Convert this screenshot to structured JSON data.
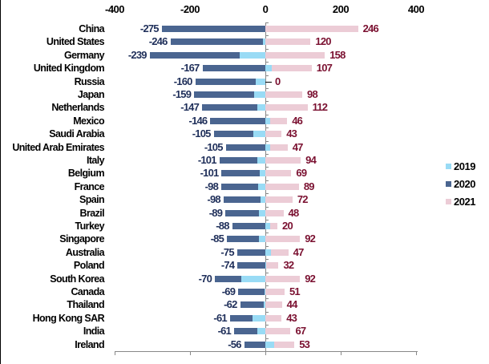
{
  "chart_data": {
    "type": "bar",
    "orientation": "horizontal",
    "stacked": true,
    "title": "",
    "xlabel": "",
    "ylabel": "",
    "xlim": [
      -400,
      400
    ],
    "x_ticks": [
      "-400",
      "-200",
      "0",
      "200",
      "400"
    ],
    "legend_position": "right",
    "grid": false,
    "categories": [
      "China",
      "United States",
      "Germany",
      "United Kingdom",
      "Russia",
      "Japan",
      "Netherlands",
      "Mexico",
      "Saudi Arabia",
      "United Arab Emirates",
      "Italy",
      "Belgium",
      "France",
      "Spain",
      "Brazil",
      "Turkey",
      "Singapore",
      "Australia",
      "Poland",
      "South Korea",
      "Canada",
      "Thailand",
      "Hong Kong SAR",
      "India",
      "Ireland"
    ],
    "series": [
      {
        "name": "2019",
        "color": "#99dbf5",
        "values": [
          0,
          -6,
          -68,
          16,
          -26,
          -30,
          -21,
          12,
          -32,
          12,
          -21,
          -15,
          -19,
          -13,
          -17,
          12,
          -17,
          14,
          3,
          -64,
          -3,
          -5,
          -33,
          -22,
          24
        ]
      },
      {
        "name": "2020",
        "color": "#4a6590",
        "values": [
          -275,
          -246,
          -239,
          -167,
          -160,
          -159,
          -147,
          -146,
          -105,
          -105,
          -101,
          -101,
          -98,
          -98,
          -89,
          -88,
          -85,
          -75,
          -74,
          -70,
          -69,
          -62,
          -61,
          -61,
          -56
        ]
      },
      {
        "name": "2021",
        "color": "#ecccd6",
        "values": [
          246,
          120,
          158,
          107,
          0,
          98,
          112,
          46,
          43,
          47,
          94,
          69,
          89,
          72,
          48,
          20,
          92,
          47,
          32,
          92,
          51,
          44,
          43,
          67,
          53
        ]
      }
    ],
    "data_labels": {
      "2020": [
        "-275",
        "-246",
        "-239",
        "-167",
        "-160",
        "-159",
        "-147",
        "-146",
        "-105",
        "-105",
        "-101",
        "-101",
        "-98",
        "-98",
        "-89",
        "-88",
        "-85",
        "-75",
        "-74",
        "-70",
        "-69",
        "-62",
        "-61",
        "-61",
        "-56"
      ],
      "2021": [
        "246",
        "120",
        "158",
        "107",
        "0",
        "98",
        "112",
        "46",
        "43",
        "47",
        "94",
        "69",
        "89",
        "72",
        "48",
        "20",
        "92",
        "47",
        "32",
        "92",
        "51",
        "44",
        "43",
        "67",
        "53"
      ]
    },
    "label_colors": {
      "negative": "#1f2f5a",
      "positive": "#7a1030"
    }
  },
  "legend": [
    {
      "label": "2019",
      "color": "#99dbf5"
    },
    {
      "label": "2020",
      "color": "#4a6590"
    },
    {
      "label": "2021",
      "color": "#ecccd6"
    }
  ]
}
